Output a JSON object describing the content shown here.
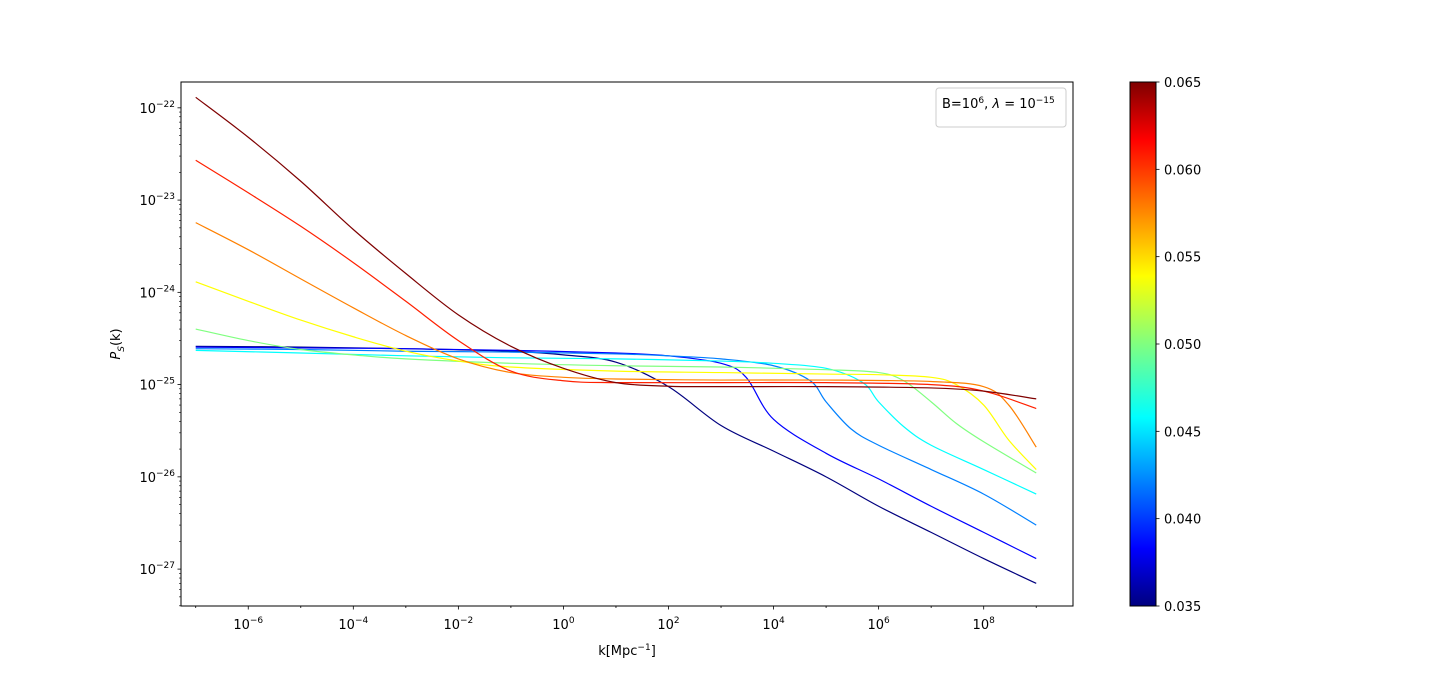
{
  "chart_data": {
    "type": "line",
    "title": "",
    "xlabel_main": "k[Mpc",
    "xlabel_sup": "−1",
    "xlabel_close": "]",
    "ylabel_italic": "P",
    "ylabel_sub": "S",
    "ylabel_rest": "(k)",
    "x_scale": "log",
    "y_scale": "log",
    "xlim": [
      1e-07,
      1000000000.0
    ],
    "ylim": [
      1e-27,
      1e-22
    ],
    "x_ticks": [
      {
        "base": "10",
        "exp": "−6",
        "value": 1e-06
      },
      {
        "base": "10",
        "exp": "−4",
        "value": 0.0001
      },
      {
        "base": "10",
        "exp": "−2",
        "value": 0.01
      },
      {
        "base": "10",
        "exp": "0",
        "value": 1
      },
      {
        "base": "10",
        "exp": "2",
        "value": 100.0
      },
      {
        "base": "10",
        "exp": "4",
        "value": 10000.0
      },
      {
        "base": "10",
        "exp": "6",
        "value": 1000000.0
      },
      {
        "base": "10",
        "exp": "8",
        "value": 100000000.0
      }
    ],
    "y_ticks": [
      {
        "base": "10",
        "exp": "−27",
        "value": 1e-27
      },
      {
        "base": "10",
        "exp": "−26",
        "value": 1e-26
      },
      {
        "base": "10",
        "exp": "−25",
        "value": 1e-25
      },
      {
        "base": "10",
        "exp": "−24",
        "value": 1e-24
      },
      {
        "base": "10",
        "exp": "−23",
        "value": 1e-23
      },
      {
        "base": "10",
        "exp": "−22",
        "value": 1e-22
      }
    ],
    "legend": {
      "placement": "top-right",
      "text_b": "B=10",
      "text_b_sup": "6",
      "text_sep": ", ",
      "text_lambda": "λ",
      "text_eq": " = 10",
      "text_lambda_sup": "−15"
    },
    "grid": false,
    "colorbar": {
      "colormap": "jet",
      "min": 0.035,
      "max": 0.065,
      "tick_labels": [
        "0.035",
        "0.040",
        "0.045",
        "0.050",
        "0.055",
        "0.060",
        "0.065"
      ],
      "tick_values": [
        0.035,
        0.04,
        0.045,
        0.05,
        0.055,
        0.06,
        0.065
      ]
    },
    "series": [
      {
        "param": 0.035,
        "color": "#00007f",
        "x": [
          1e-07,
          1e-05,
          0.001,
          0.1,
          1.0,
          10.0,
          100.0,
          1000.0,
          10000.0,
          100000.0,
          1000000.0,
          10000000.0,
          100000000.0,
          1000000000.0
        ],
        "y": [
          2.6e-25,
          2.55e-25,
          2.45e-25,
          2.3e-25,
          2.1e-25,
          1.75e-25,
          9.5e-26,
          3.6e-26,
          1.9e-26,
          1e-26,
          4.8e-27,
          2.5e-27,
          1.3e-27,
          7e-28
        ]
      },
      {
        "param": 0.04,
        "color": "#0000ff",
        "x": [
          1e-07,
          1e-05,
          0.001,
          0.1,
          10.0,
          100.0,
          1000.0,
          3000.0,
          10000.0,
          100000.0,
          1000000.0,
          10000000.0,
          100000000.0,
          1000000000.0
        ],
        "y": [
          2.55e-25,
          2.5e-25,
          2.45e-25,
          2.35e-25,
          2.2e-25,
          2.05e-25,
          1.7e-25,
          1.2e-25,
          4.2e-26,
          1.8e-26,
          9.5e-27,
          4.8e-27,
          2.5e-27,
          1.3e-27
        ]
      },
      {
        "param": 0.045,
        "color": "#0080ff",
        "x": [
          1e-07,
          1e-05,
          0.001,
          0.1,
          10.0,
          100.0,
          1000.0,
          10000.0,
          50000.0,
          100000.0,
          300000.0,
          1000000.0,
          10000000.0,
          100000000.0,
          1000000000.0
        ],
        "y": [
          2.45e-25,
          2.4e-25,
          2.3e-25,
          2.25e-25,
          2.15e-25,
          2.05e-25,
          1.9e-25,
          1.6e-25,
          1.1e-25,
          6.5e-26,
          3.3e-26,
          2.2e-26,
          1.2e-26,
          6.5e-27,
          3e-27
        ]
      },
      {
        "param": 0.05,
        "color": "#00ffff",
        "x": [
          1e-07,
          1e-05,
          0.001,
          0.1,
          10.0,
          1000.0,
          10000.0,
          100000.0,
          500000.0,
          1000000.0,
          3000000.0,
          10000000.0,
          100000000.0,
          1000000000.0
        ],
        "y": [
          2.35e-25,
          2.2e-25,
          2.05e-25,
          1.95e-25,
          1.9e-25,
          1.8e-25,
          1.7e-25,
          1.5e-25,
          1.05e-25,
          6.5e-26,
          3.5e-26,
          2.2e-26,
          1.2e-26,
          6.5e-27
        ]
      },
      {
        "param": 0.055,
        "color": "#80ff80",
        "x": [
          1e-07,
          1e-06,
          1e-05,
          0.0001,
          0.001,
          0.1,
          10.0,
          1000.0,
          100000.0,
          1000000.0,
          3000000.0,
          10000000.0,
          30000000.0,
          100000000.0,
          1000000000.0
        ],
        "y": [
          4e-25,
          3e-25,
          2.4e-25,
          2.1e-25,
          1.9e-25,
          1.7e-25,
          1.6e-25,
          1.55e-25,
          1.45e-25,
          1.35e-25,
          1.1e-25,
          6.5e-26,
          3.8e-26,
          2.4e-26,
          1.1e-26
        ]
      },
      {
        "param": 0.06,
        "color": "#ffff00",
        "x": [
          1e-07,
          1e-06,
          1e-05,
          0.0001,
          0.001,
          0.01,
          0.1,
          10.0,
          1000.0,
          100000.0,
          1000000.0,
          10000000.0,
          30000000.0,
          100000000.0,
          300000000.0,
          1000000000.0
        ],
        "y": [
          1.3e-24,
          8e-25,
          5e-25,
          3.3e-25,
          2.3e-25,
          1.8e-25,
          1.55e-25,
          1.4e-25,
          1.35e-25,
          1.3e-25,
          1.28e-25,
          1.2e-25,
          1e-25,
          6e-26,
          2.5e-26,
          1.2e-26
        ]
      },
      {
        "param": 0.0625,
        "color": "#ff8000",
        "x": [
          1e-07,
          1e-06,
          1e-05,
          0.0001,
          0.001,
          0.01,
          0.1,
          1.0,
          10.0,
          1000.0,
          100000.0,
          10000000.0,
          100000000.0,
          300000000.0,
          1000000000.0
        ],
        "y": [
          5.7e-24,
          2.9e-24,
          1.4e-24,
          6.8e-25,
          3.4e-25,
          1.9e-25,
          1.35e-25,
          1.2e-25,
          1.15e-25,
          1.12e-25,
          1.12e-25,
          1.08e-25,
          9.5e-26,
          6e-26,
          2.1e-26
        ]
      },
      {
        "param": 0.064,
        "color": "#ff2000",
        "x": [
          1e-07,
          1e-06,
          1e-05,
          0.0001,
          0.001,
          0.01,
          0.1,
          1.0,
          10.0,
          1000.0,
          100000.0,
          10000000.0,
          100000000.0,
          1000000000.0
        ],
        "y": [
          2.7e-23,
          1.2e-23,
          5.2e-24,
          2.1e-24,
          8e-25,
          3e-25,
          1.4e-25,
          1.1e-25,
          1.05e-25,
          1.05e-25,
          1.05e-25,
          1e-25,
          8.5e-26,
          5.5e-26
        ]
      },
      {
        "param": 0.065,
        "color": "#7f0000",
        "x": [
          1e-07,
          1e-06,
          1e-05,
          0.0001,
          0.001,
          0.01,
          0.1,
          1.0,
          10.0,
          100.0,
          1000.0,
          100000.0,
          10000000.0,
          100000000.0,
          1000000000.0
        ],
        "y": [
          1.3e-22,
          4.8e-23,
          1.6e-23,
          4.8e-24,
          1.6e-24,
          5.7e-25,
          2.6e-25,
          1.5e-25,
          1.05e-25,
          9.6e-26,
          9.5e-26,
          9.5e-26,
          9.2e-26,
          8.5e-26,
          7e-26
        ]
      }
    ]
  }
}
